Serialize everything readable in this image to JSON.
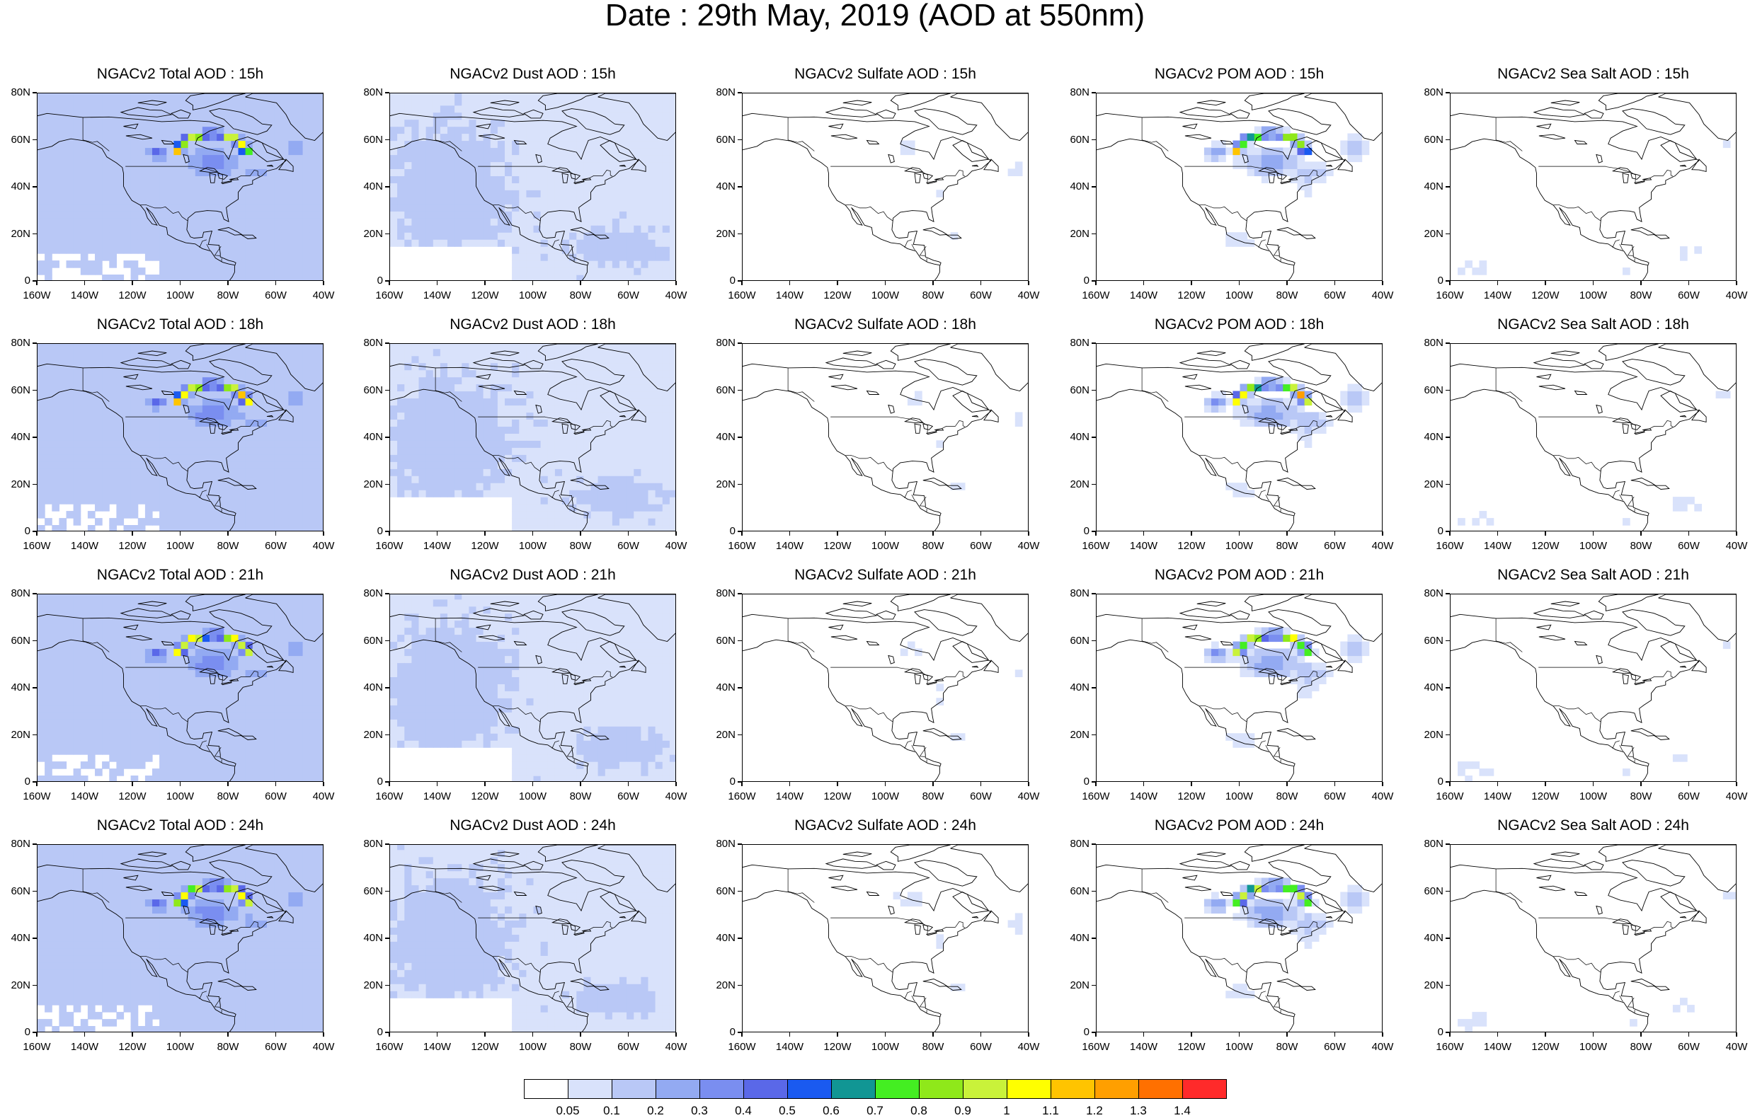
{
  "title": "Date : 29th May, 2019 (AOD at 550nm)",
  "axes": {
    "x_ticks": [
      "160W",
      "140W",
      "120W",
      "100W",
      "80W",
      "60W",
      "40W"
    ],
    "y_ticks": [
      "0",
      "20N",
      "40N",
      "60N",
      "80N"
    ]
  },
  "colorbar": {
    "labels": [
      "0.05",
      "0.1",
      "0.2",
      "0.3",
      "0.4",
      "0.5",
      "0.6",
      "0.7",
      "0.8",
      "0.9",
      "1",
      "1.1",
      "1.2",
      "1.3",
      "1.4"
    ],
    "colors": [
      "#ffffff",
      "#d9e2fb",
      "#b9c8f6",
      "#93aaf2",
      "#7a8ef0",
      "#5a68e8",
      "#1a5af0",
      "#119694",
      "#44ee22",
      "#8fe81a",
      "#c9f23a",
      "#ffff00",
      "#ffc400",
      "#ff9f00",
      "#ff7000",
      "#ff2a2a"
    ]
  },
  "panels": [
    {
      "title": "NGACv2 Total AOD : 15h",
      "type": "total"
    },
    {
      "title": "NGACv2 Dust AOD : 15h",
      "type": "dust"
    },
    {
      "title": "NGACv2 Sulfate AOD : 15h",
      "type": "sulfate"
    },
    {
      "title": "NGACv2 POM AOD : 15h",
      "type": "pom"
    },
    {
      "title": "NGACv2 Sea Salt AOD : 15h",
      "type": "seasalt"
    },
    {
      "title": "NGACv2 Total AOD : 18h",
      "type": "total"
    },
    {
      "title": "NGACv2 Dust AOD : 18h",
      "type": "dust"
    },
    {
      "title": "NGACv2 Sulfate AOD : 18h",
      "type": "sulfate"
    },
    {
      "title": "NGACv2 POM AOD : 18h",
      "type": "pom"
    },
    {
      "title": "NGACv2 Sea Salt AOD : 18h",
      "type": "seasalt"
    },
    {
      "title": "NGACv2 Total AOD : 21h",
      "type": "total"
    },
    {
      "title": "NGACv2 Dust AOD : 21h",
      "type": "dust"
    },
    {
      "title": "NGACv2 Sulfate AOD : 21h",
      "type": "sulfate"
    },
    {
      "title": "NGACv2 POM AOD : 21h",
      "type": "pom"
    },
    {
      "title": "NGACv2 Sea Salt AOD : 21h",
      "type": "seasalt"
    },
    {
      "title": "NGACv2 Total AOD : 24h",
      "type": "total"
    },
    {
      "title": "NGACv2 Dust AOD : 24h",
      "type": "dust"
    },
    {
      "title": "NGACv2 Sulfate AOD : 24h",
      "type": "sulfate"
    },
    {
      "title": "NGACv2 POM AOD : 24h",
      "type": "pom"
    },
    {
      "title": "NGACv2 Sea Salt  AOD : 24h",
      "type": "seasalt"
    }
  ],
  "chart_data": {
    "type": "heatmap",
    "title": "Date : 29th May, 2019 (AOD at 550nm)",
    "variable": "AOD at 550nm",
    "xlim": [
      "160W",
      "40W"
    ],
    "ylim": [
      "0",
      "80N"
    ],
    "forecast_hours": [
      "15h",
      "18h",
      "21h",
      "24h"
    ],
    "species": [
      "Total",
      "Dust",
      "Sulfate",
      "POM",
      "Sea Salt"
    ],
    "color_levels": [
      0.05,
      0.1,
      0.2,
      0.3,
      0.4,
      0.5,
      0.6,
      0.7,
      0.8,
      0.9,
      1,
      1.1,
      1.2,
      1.3,
      1.4
    ]
  }
}
